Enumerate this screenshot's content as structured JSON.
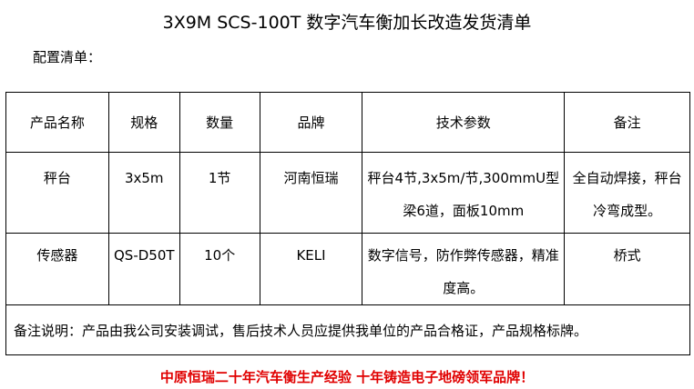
{
  "title": "3X9M SCS-100T 数字汽车衡加长改造发货清单",
  "subtitle": "配置清单：",
  "table": {
    "headers": [
      "产品名称",
      "规格",
      "数量",
      "品牌",
      "技术参数",
      "备注"
    ],
    "rows": [
      [
        "秤台",
        "3x5m",
        "1节",
        "河南恒瑞",
        "秤台4节,3x5m/节,300mmU型梁6道，面板10mm",
        "全自动焊接，秤台冷弯成型。"
      ],
      [
        "传感器",
        "QS-D50T",
        "10个",
        "KELI",
        "数字信号，防作弊传感器，精准度高。",
        "桥式"
      ]
    ],
    "note": "备注说明：产品由我公司安装调试，售后技术人员应提供我单位的产品合格证，产品规格标牌。"
  },
  "footer": "中原恒瑞二十年汽车衡生产经验 十年铸造电子地磅领军品牌！",
  "colors": {
    "footer": "#e00000"
  }
}
